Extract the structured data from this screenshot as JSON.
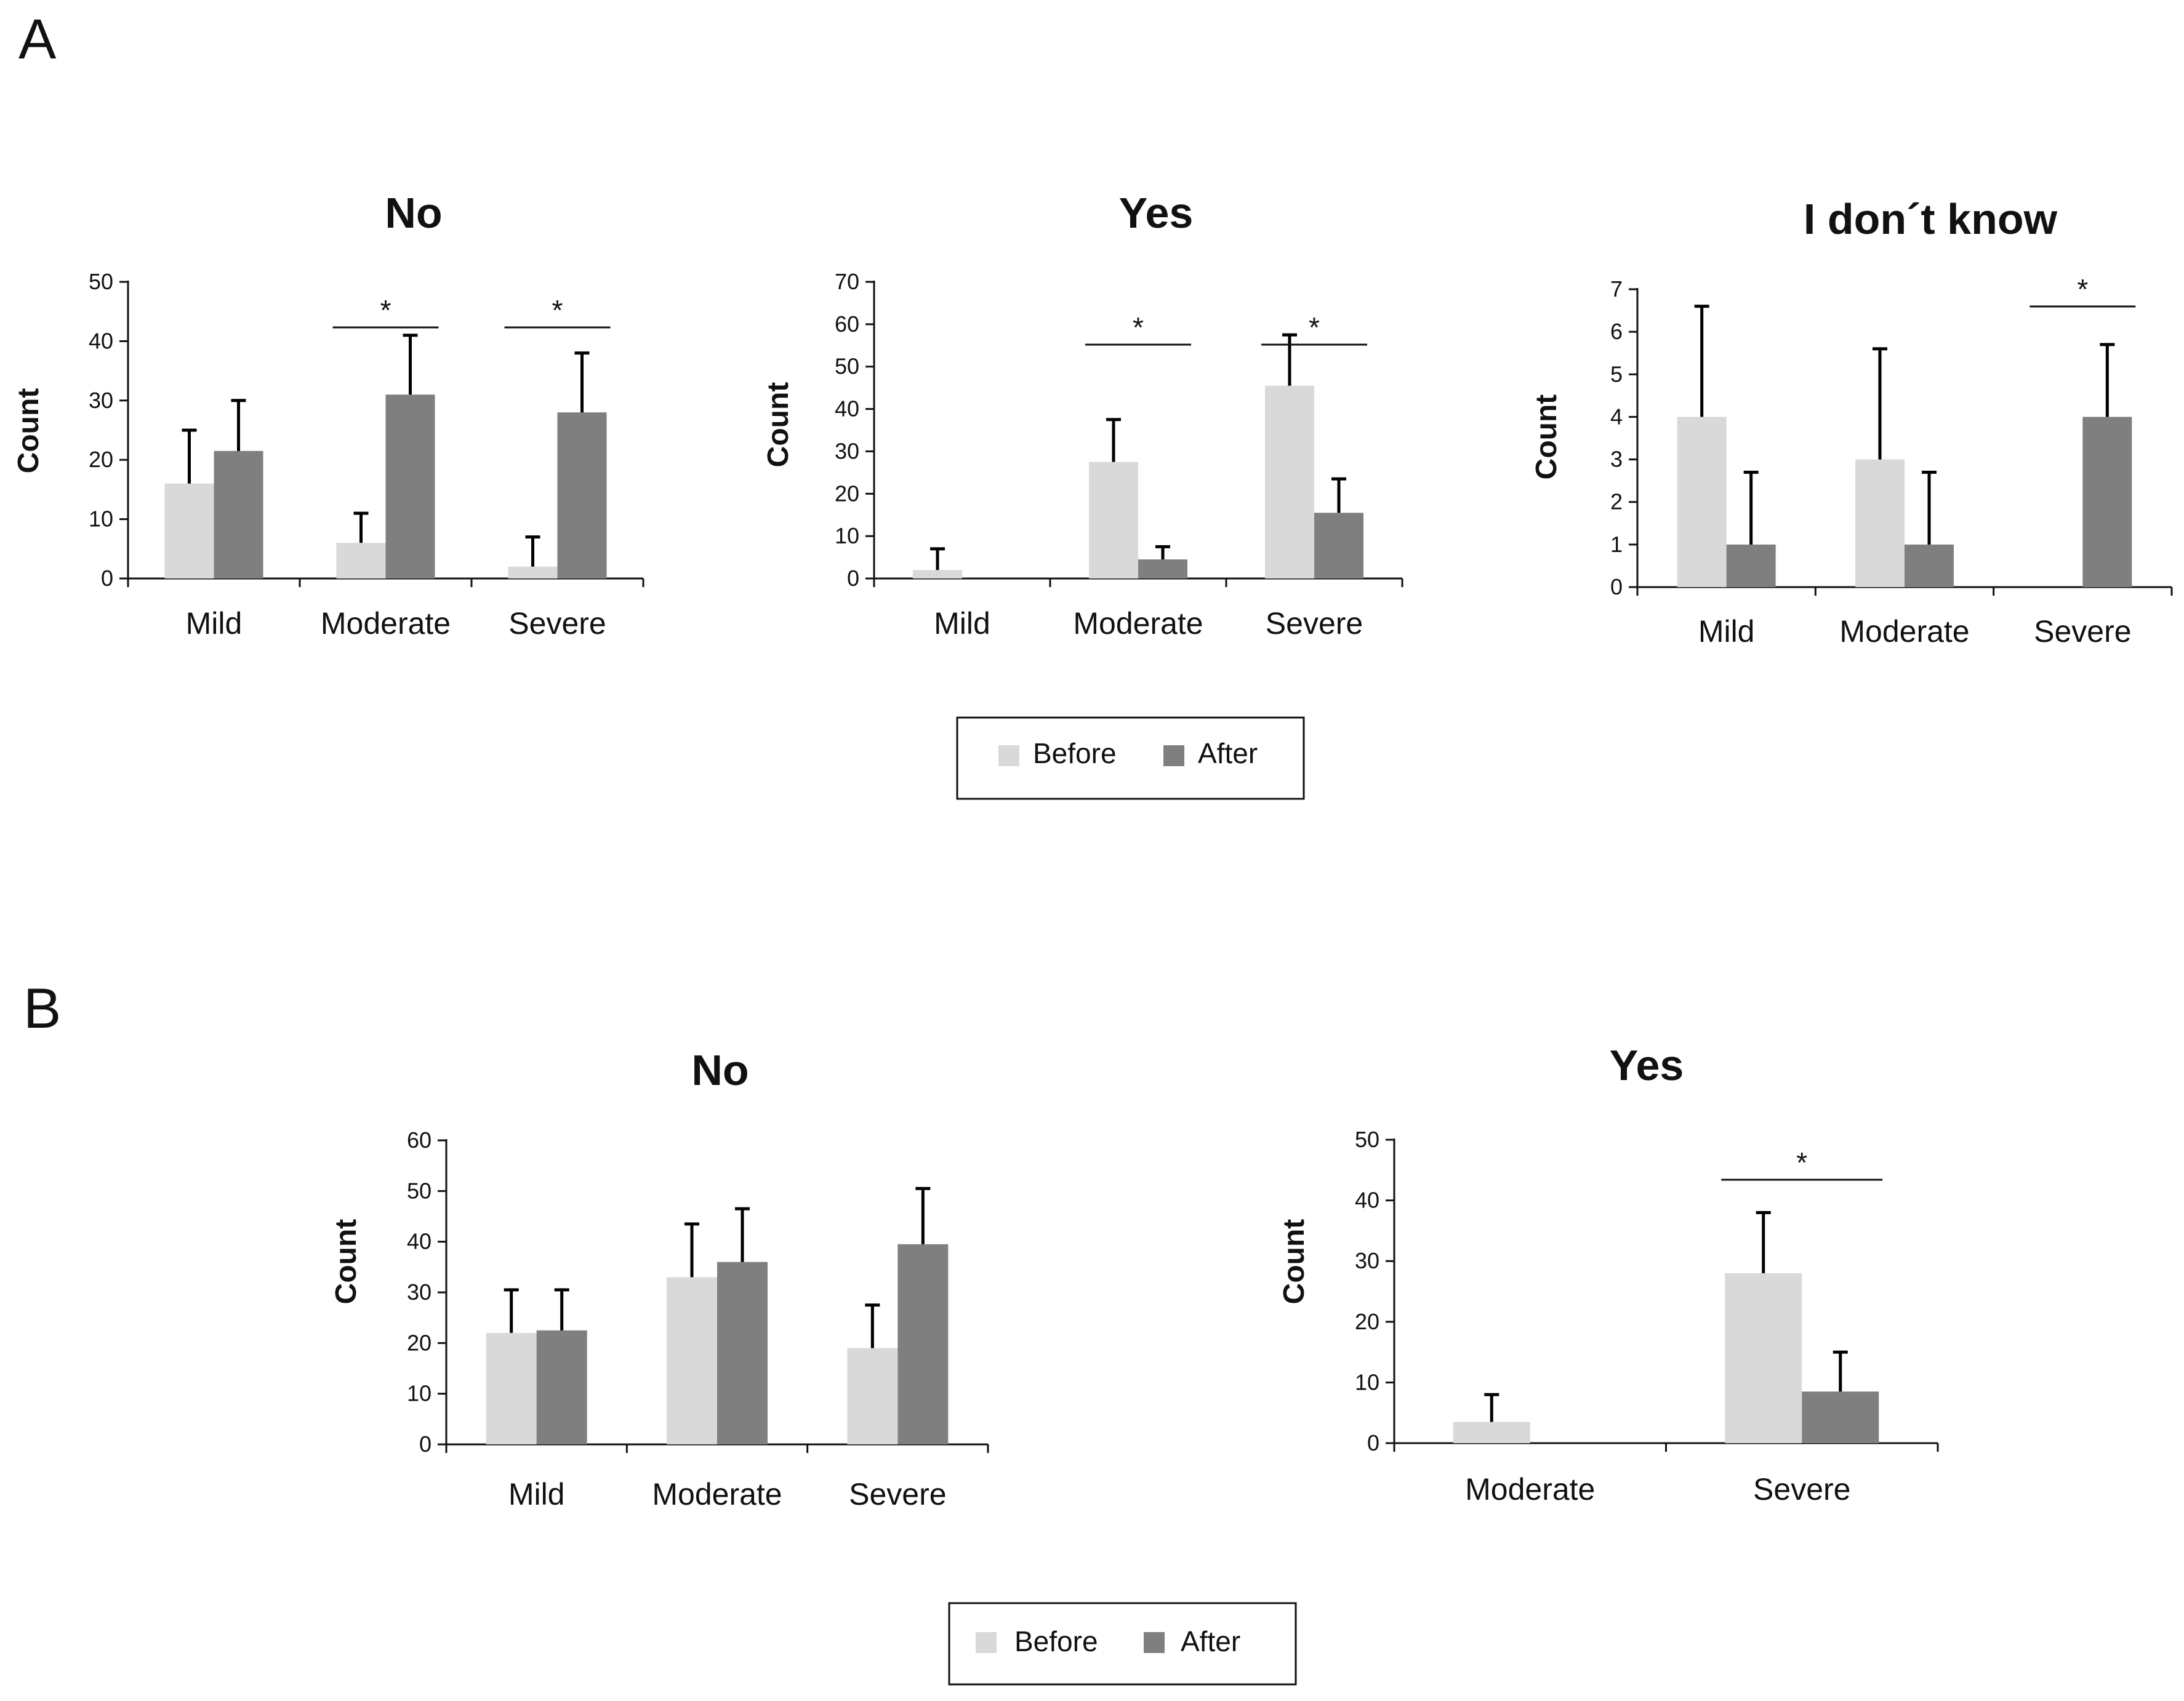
{
  "panels": [
    {
      "letter": "A"
    },
    {
      "letter": "B"
    }
  ],
  "colors": {
    "before": "#d9d9d9",
    "after": "#7f7f7f",
    "axis": "#111111",
    "error": "#000000"
  },
  "legends": [
    {
      "before_label": "Before",
      "after_label": "After"
    },
    {
      "before_label": "Before",
      "after_label": "After"
    }
  ],
  "chart_data": [
    {
      "panel": "A",
      "type": "bar",
      "title": "No",
      "ylabel": "Count",
      "ylim": [
        0,
        50
      ],
      "ticks": [
        0,
        10,
        20,
        30,
        40,
        50
      ],
      "categories": [
        "Mild",
        "Moderate",
        "Severe"
      ],
      "series": [
        {
          "name": "Before",
          "values": [
            16,
            6,
            2
          ],
          "errors": [
            9,
            5,
            5
          ]
        },
        {
          "name": "After",
          "values": [
            21.5,
            31,
            28
          ],
          "errors": [
            8.5,
            10,
            10
          ]
        }
      ],
      "significance": [
        {
          "category": "Moderate",
          "label": "*"
        },
        {
          "category": "Severe",
          "label": "*"
        }
      ]
    },
    {
      "panel": "A",
      "type": "bar",
      "title": "Yes",
      "ylabel": "Count",
      "ylim": [
        0,
        70
      ],
      "ticks": [
        0,
        10,
        20,
        30,
        40,
        50,
        60,
        70
      ],
      "categories": [
        "Mild",
        "Moderate",
        "Severe"
      ],
      "series": [
        {
          "name": "Before",
          "values": [
            2,
            27.5,
            45.5
          ],
          "errors": [
            5,
            10,
            12
          ]
        },
        {
          "name": "After",
          "values": [
            0,
            4.5,
            15.5
          ],
          "errors": [
            0,
            3,
            8
          ]
        }
      ],
      "significance": [
        {
          "category": "Moderate",
          "label": "*"
        },
        {
          "category": "Severe",
          "label": "*"
        }
      ]
    },
    {
      "panel": "A",
      "type": "bar",
      "title": "I don´t know",
      "ylabel": "Count",
      "ylim": [
        0,
        7
      ],
      "ticks": [
        0,
        1,
        2,
        3,
        4,
        5,
        6,
        7
      ],
      "categories": [
        "Mild",
        "Moderate",
        "Severe"
      ],
      "series": [
        {
          "name": "Before",
          "values": [
            4,
            3,
            0
          ],
          "errors": [
            2.6,
            2.6,
            0
          ]
        },
        {
          "name": "After",
          "values": [
            1,
            1,
            4
          ],
          "errors": [
            1.7,
            1.7,
            1.7
          ]
        }
      ],
      "significance": [
        {
          "category": "Severe",
          "label": "*"
        }
      ]
    },
    {
      "panel": "B",
      "type": "bar",
      "title": "No",
      "ylabel": "Count",
      "ylim": [
        0,
        60
      ],
      "ticks": [
        0,
        10,
        20,
        30,
        40,
        50,
        60
      ],
      "categories": [
        "Mild",
        "Moderate",
        "Severe"
      ],
      "series": [
        {
          "name": "Before",
          "values": [
            22,
            33,
            19
          ],
          "errors": [
            8.5,
            10.5,
            8.5
          ]
        },
        {
          "name": "After",
          "values": [
            22.5,
            36,
            39.5
          ],
          "errors": [
            8,
            10.5,
            11
          ]
        }
      ],
      "significance": []
    },
    {
      "panel": "B",
      "type": "bar",
      "title": "Yes",
      "ylabel": "Count",
      "ylim": [
        0,
        50
      ],
      "ticks": [
        0,
        10,
        20,
        30,
        40,
        50
      ],
      "categories": [
        "Moderate",
        "Severe"
      ],
      "series": [
        {
          "name": "Before",
          "values": [
            3.5,
            28
          ],
          "errors": [
            4.5,
            10
          ]
        },
        {
          "name": "After",
          "values": [
            0,
            8.5
          ],
          "errors": [
            0,
            6.5
          ]
        }
      ],
      "significance": [
        {
          "category": "Severe",
          "label": "*"
        }
      ]
    }
  ]
}
